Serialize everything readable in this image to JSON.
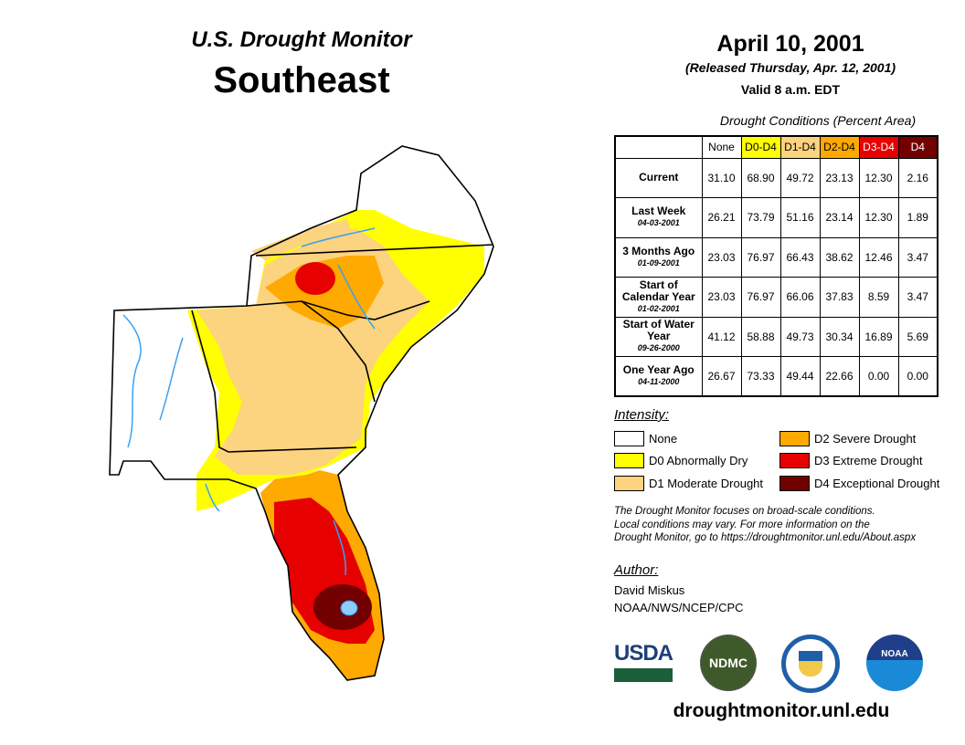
{
  "header": {
    "subtitle": "U.S. Drought Monitor",
    "region": "Southeast",
    "date": "April 10, 2001",
    "released": "(Released Thursday, Apr. 12, 2001)",
    "valid": "Valid 8 a.m. EDT"
  },
  "table": {
    "title": "Drought Conditions (Percent Area)",
    "columns": [
      {
        "label": "None",
        "color": "#ffffff",
        "text": "#000000"
      },
      {
        "label": "D0-D4",
        "color": "#ffff00",
        "text": "#000000"
      },
      {
        "label": "D1-D4",
        "color": "#fcd37f",
        "text": "#000000"
      },
      {
        "label": "D2-D4",
        "color": "#ffaa00",
        "text": "#000000"
      },
      {
        "label": "D3-D4",
        "color": "#e60000",
        "text": "#ffffff"
      },
      {
        "label": "D4",
        "color": "#730000",
        "text": "#ffffff"
      }
    ],
    "rows": [
      {
        "label": "Current",
        "date": "",
        "values": [
          "31.10",
          "68.90",
          "49.72",
          "23.13",
          "12.30",
          "2.16"
        ]
      },
      {
        "label": "Last Week",
        "date": "04-03-2001",
        "values": [
          "26.21",
          "73.79",
          "51.16",
          "23.14",
          "12.30",
          "1.89"
        ]
      },
      {
        "label": "3 Months Ago",
        "date": "01-09-2001",
        "values": [
          "23.03",
          "76.97",
          "66.43",
          "38.62",
          "12.46",
          "3.47"
        ]
      },
      {
        "label": "Start of Calendar Year",
        "date": "01-02-2001",
        "values": [
          "23.03",
          "76.97",
          "66.06",
          "37.83",
          "8.59",
          "3.47"
        ]
      },
      {
        "label": "Start of Water Year",
        "date": "09-26-2000",
        "values": [
          "41.12",
          "58.88",
          "49.73",
          "30.34",
          "16.89",
          "5.69"
        ]
      },
      {
        "label": "One Year Ago",
        "date": "04-11-2000",
        "values": [
          "26.67",
          "73.33",
          "49.44",
          "22.66",
          "0.00",
          "0.00"
        ]
      }
    ]
  },
  "legend": {
    "title": "Intensity:",
    "items": [
      {
        "label": "None",
        "color": "#ffffff"
      },
      {
        "label": "D0 Abnormally Dry",
        "color": "#ffff00"
      },
      {
        "label": "D1 Moderate Drought",
        "color": "#fcd37f"
      },
      {
        "label": "D2 Severe Drought",
        "color": "#ffaa00"
      },
      {
        "label": "D3 Extreme Drought",
        "color": "#e60000"
      },
      {
        "label": "D4 Exceptional Drought",
        "color": "#730000"
      }
    ]
  },
  "note": [
    "The Drought Monitor focuses on broad-scale conditions.",
    "Local conditions may vary. For more information on the",
    "Drought Monitor, go to https://droughtmonitor.unl.edu/About.aspx"
  ],
  "author": {
    "title": "Author:",
    "name": "David Miskus",
    "org": "NOAA/NWS/NCEP/CPC"
  },
  "logos": {
    "usda": "USDA",
    "ndmc": "NDMC",
    "noaa": "NOAA"
  },
  "url": "droughtmonitor.unl.edu"
}
